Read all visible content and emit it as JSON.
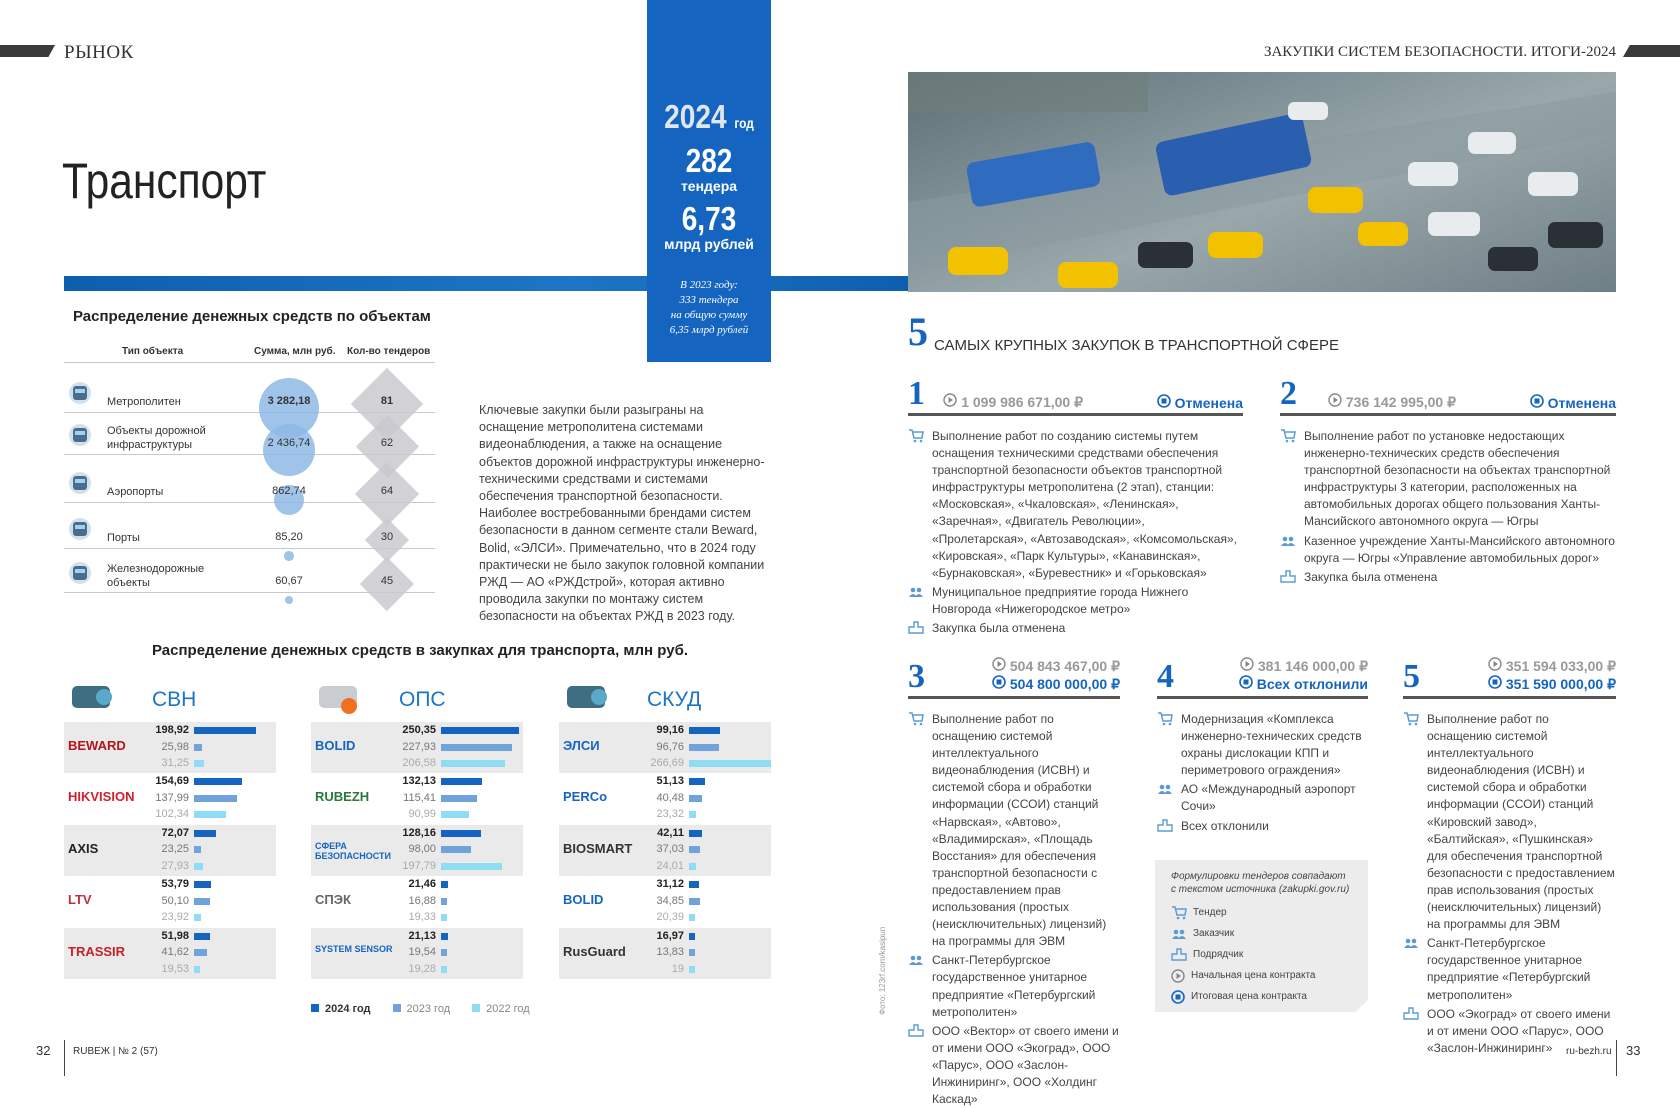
{
  "header": {
    "left_section": "РЫНОК",
    "right_section": "ЗАКУПКИ СИСТЕМ БЕЗОПАСНОСТИ. ИТОГИ-2024",
    "page_title": "Транспорт"
  },
  "summary": {
    "year": "2024",
    "year_suffix": "год",
    "tenders": "282",
    "tenders_label": "тендера",
    "sum": "6,73",
    "sum_label": "млрд рублей",
    "note": [
      "В 2023 году:",
      "333 тендера",
      "на общую сумму",
      "6,35 млрд рублей"
    ]
  },
  "objects": {
    "title": "Распределение денежных средств по объектам",
    "col_type": "Тип объекта",
    "col_sum": "Сумма, млн руб.",
    "col_count": "Кол-во тендеров",
    "rows": [
      {
        "icon": "metro-train-icon",
        "name": "Метрополитен",
        "sum": "3 282,18",
        "sum_value": 3282.18,
        "count": 81
      },
      {
        "icon": "road-icon",
        "name": "Объекты дорожной инфраструктуры",
        "sum": "2 436,74",
        "sum_value": 2436.74,
        "count": 62
      },
      {
        "icon": "airport-icon",
        "name": "Аэропорты",
        "sum": "862,74",
        "sum_value": 862.74,
        "count": 64
      },
      {
        "icon": "port-crane-icon",
        "name": "Порты",
        "sum": "85,20",
        "sum_value": 85.2,
        "count": 30
      },
      {
        "icon": "railway-icon",
        "name": "Железнодорожные объекты",
        "sum": "60,67",
        "sum_value": 60.67,
        "count": 45
      }
    ],
    "bubble_color": "#8fb8e6",
    "diamond_color": "#c9c9cf"
  },
  "body_text": "Ключевые закупки были разыграны на оснащение метрополитена системами видеонаблюдения, а также на оснащение объектов дорожной инфраструктуры инженерно-техническими средствами и системами обеспечения транспортной безопасности. Наиболее востребованными брендами систем безопасности в данном сегменте стали Beward, Bolid, «ЭЛСИ». Примечательно, что в 2024 году практически не было закупок головной компании РЖД — АО «РЖДстрой», которая активно проводила закупки по монтажу систем безопасности на объектах РЖД в 2023 году.",
  "top5": {
    "number": "5",
    "title": "самых крупных закупок в транспортной сфере",
    "cards": [
      {
        "n": "1",
        "initial": "1 099 986 671,00 ₽",
        "final": "Отменена",
        "tender": "Выполнение работ по созданию системы путем оснащения техническими средствами обеспечения транспортной безопасности объектов транспортной инфраструктуры метрополитена (2 этап), станции: «Московская», «Чкаловская», «Ленинская», «Заречная», «Двигатель Революции», «Пролетарская», «Автозаводская», «Комсомольская», «Кировская», «Парк Культуры», «Канавинская», «Бурнаковская», «Буревестник» и «Горьковская»",
        "customer": "Муниципальное предприятие города Нижнего Новгорода «Нижегородское метро»",
        "contractor": "Закупка была отменена"
      },
      {
        "n": "2",
        "initial": "736 142 995,00 ₽",
        "final": "Отменена",
        "tender": "Выполнение работ по установке недостающих инженерно-технических средств обеспечения транспортной безопасности на объектах транспортной инфраструктуры 3 категории, расположенных на автомобильных дорогах общего пользования Ханты-Мансийского автономного округа — Югры",
        "customer": "Казенное учреждение Ханты-Мансийского автономного округа — Югры «Управление автомобильных дорог»",
        "contractor": "Закупка была отменена"
      },
      {
        "n": "3",
        "initial": "504 843 467,00 ₽",
        "final": "504 800 000,00 ₽",
        "tender": "Выполнение работ по оснащению системой интеллектуального видеонаблюдения (ИСВН) и системой сбора и обработки информации (ССОИ) станций «Нарвская», «Автово», «Владимирская», «Площадь Восстания» для обеспечения транспортной безопасности с предоставлением прав использования (простых (неисключительных) лицензий) на программы для ЭВМ",
        "customer": "Санкт-Петербургское государственное унитарное предприятие «Петербургский метрополитен»",
        "contractor": "ООО «Вектор» от своего имени и от имени ООО «Экоград», ООО «Парус», ООО «Заслон-Инжиниринг», ООО «Холдинг Каскад»"
      },
      {
        "n": "4",
        "initial": "381 146 000,00 ₽",
        "final": "Всех отклонили",
        "tender": "Модернизация «Комплекса инженерно-технических средств охраны дислокации КПП и периметрового ограждения»",
        "customer": "АО «Международный аэропорт Сочи»",
        "contractor": "Всех отклонили"
      },
      {
        "n": "5",
        "initial": "351 594 033,00 ₽",
        "final": "351 590 000,00 ₽",
        "tender": "Выполнение работ по оснащению системой интеллектуального видеонаблюдения (ИСВН) и системой сбора и обработки информации (ССОИ) станций «Кировский завод», «Балтийская», «Пушкинская» для обеспечения транспортной безопасности с предоставлением прав использования (простых (неисключительных) лицензий) на программы для ЭВМ",
        "customer": "Санкт-Петербургское государственное унитарное предприятие «Петербургский метрополитен»",
        "contractor": "ООО «Экоград» от своего имени и от имени ООО «Парус», ООО «Заслон-Инжиниринг»"
      }
    ]
  },
  "legend_box": {
    "note": "Формулировки тендеров совпадают с текстом источника (zakupki.gov.ru)",
    "items": [
      {
        "icon": "cart-icon",
        "label": "Тендер"
      },
      {
        "icon": "customer-icon",
        "label": "Заказчик"
      },
      {
        "icon": "contractor-icon",
        "label": "Подрядчик"
      },
      {
        "icon": "play-circle-icon",
        "label": "Начальная цена контракта"
      },
      {
        "icon": "stop-circle-icon",
        "label": "Итоговая цена контракта"
      }
    ]
  },
  "chart_data": {
    "type": "bar",
    "title": "Распределение денежных средств в закупках для транспорта, млн руб.",
    "legend": [
      "2024 год",
      "2023 год",
      "2022 год"
    ],
    "colors": [
      "#1565c0",
      "#6fa3da",
      "#8fdcf5"
    ],
    "groups": [
      {
        "name": "СВН",
        "icon": "cctv-camera-icon",
        "brands": [
          {
            "brand": "BEWARD",
            "values": [
              198.92,
              25.98,
              31.25
            ]
          },
          {
            "brand": "HIKVISION",
            "values": [
              154.69,
              137.99,
              102.34
            ]
          },
          {
            "brand": "AXIS",
            "values": [
              72.07,
              23.25,
              27.93
            ]
          },
          {
            "brand": "LTV",
            "values": [
              53.79,
              50.1,
              23.92
            ]
          },
          {
            "brand": "TRASSIR",
            "values": [
              51.98,
              41.62,
              19.53
            ]
          }
        ]
      },
      {
        "name": "ОПС",
        "icon": "fire-detector-icon",
        "brands": [
          {
            "brand": "BOLID",
            "values": [
              250.35,
              227.93,
              206.58
            ]
          },
          {
            "brand": "RUBEZH",
            "values": [
              132.13,
              115.41,
              90.99
            ]
          },
          {
            "brand": "СФЕРА БЕЗОПАСНОСТИ",
            "values": [
              128.16,
              98.0,
              197.79
            ]
          },
          {
            "brand": "СПЭК",
            "values": [
              21.46,
              16.88,
              19.33
            ]
          },
          {
            "brand": "SYSTEM SENSOR",
            "values": [
              21.13,
              19.54,
              19.28
            ]
          }
        ]
      },
      {
        "name": "СКУД",
        "icon": "access-control-icon",
        "brands": [
          {
            "brand": "ЭЛСИ",
            "values": [
              99.16,
              96.76,
              266.69
            ]
          },
          {
            "brand": "PERCo",
            "values": [
              51.13,
              40.48,
              23.32
            ]
          },
          {
            "brand": "BIOSMART",
            "values": [
              42.11,
              37.03,
              24.01
            ]
          },
          {
            "brand": "BOLID",
            "values": [
              31.12,
              34.85,
              20.39
            ]
          },
          {
            "brand": "RusGuard",
            "values": [
              16.97,
              13.83,
              19
            ]
          }
        ]
      }
    ]
  },
  "photo_credit": "Фото: 123rf.com/kasipun",
  "footer": {
    "left_page": "32",
    "magazine": "RUBEЖ | № 2 (57)",
    "site": "ru-bezh.ru",
    "right_page": "33"
  }
}
